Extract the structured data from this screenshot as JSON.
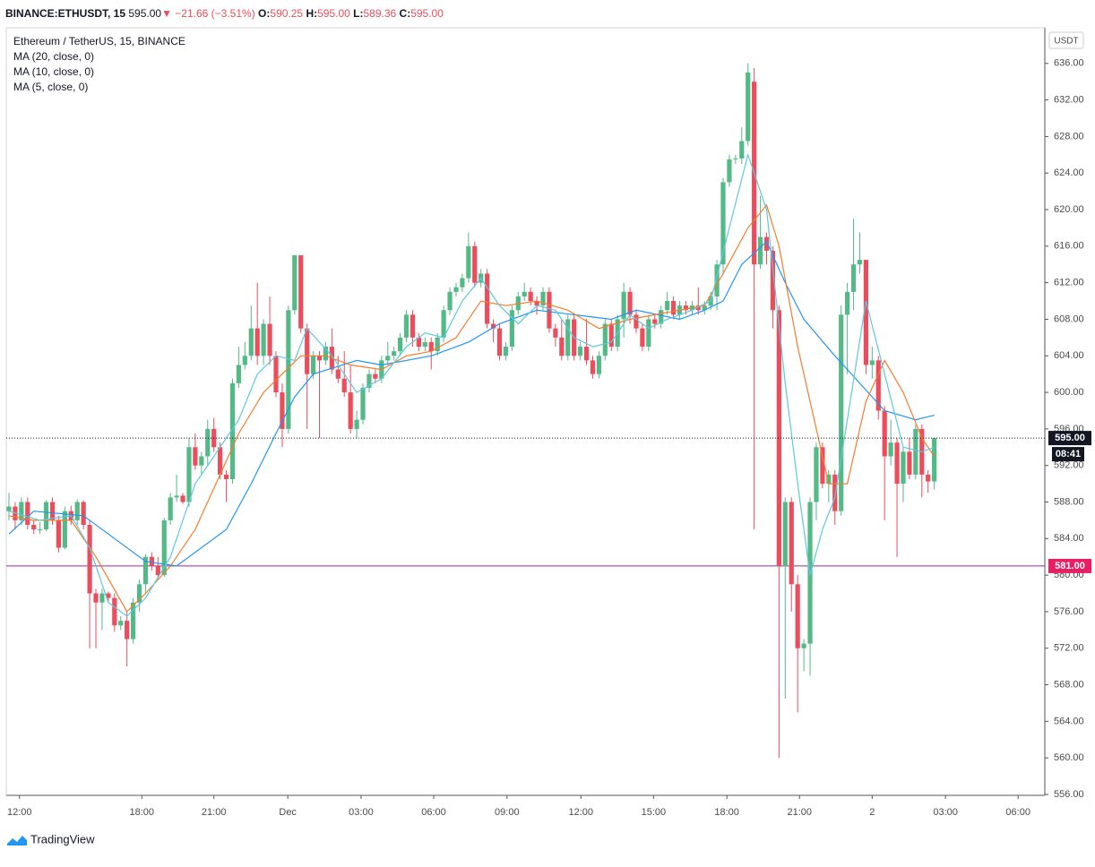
{
  "header": {
    "symbol": "BINANCE:ETHUSDT, 15",
    "price": "595.00",
    "arrow": "▼",
    "change": "−21.66 (−3.51%)",
    "o_label": "O:",
    "open": "590.25",
    "h_label": "H:",
    "high": "595.00",
    "l_label": "L:",
    "low": "589.36",
    "c_label": "C:",
    "close": "595.00"
  },
  "brand": "TradingView",
  "chart_data": {
    "type": "candlestick",
    "title": "Ethereum / TetherUS, 15, BINANCE",
    "currency": "USDT",
    "up_color": "#53b987",
    "down_color": "#eb4d5c",
    "candles": [
      [
        587,
        589,
        586,
        587.5
      ],
      [
        587.5,
        588,
        585,
        586
      ],
      [
        586,
        588.5,
        585.5,
        588
      ],
      [
        588,
        588.5,
        585,
        585.5
      ],
      [
        585.5,
        586,
        584.5,
        585
      ],
      [
        585,
        585.8,
        584.5,
        585
      ],
      [
        585,
        588.2,
        584.8,
        588
      ],
      [
        588,
        588.5,
        585.5,
        586
      ],
      [
        586,
        586.5,
        582.5,
        583
      ],
      [
        583,
        587.5,
        582.8,
        587
      ],
      [
        587,
        587.6,
        585.5,
        586
      ],
      [
        586,
        588.3,
        585.5,
        588
      ],
      [
        588,
        588.2,
        585,
        585.5
      ],
      [
        585.5,
        586,
        572,
        578
      ],
      [
        578,
        578.5,
        572,
        577
      ],
      [
        577,
        578.5,
        574,
        578
      ],
      [
        578,
        578.2,
        577,
        577.5
      ],
      [
        577.5,
        578,
        573.8,
        574.5
      ],
      [
        574.5,
        575.5,
        574,
        575
      ],
      [
        575,
        576,
        570,
        573
      ],
      [
        573,
        577.5,
        572.5,
        577
      ],
      [
        577,
        579.5,
        576,
        579
      ],
      [
        579,
        582.3,
        578,
        582
      ],
      [
        582,
        582.5,
        580.5,
        581
      ],
      [
        581,
        582,
        579.5,
        580
      ],
      [
        580,
        586.3,
        579.8,
        586
      ],
      [
        586,
        589,
        585.5,
        588.5
      ],
      [
        588.5,
        591,
        588,
        588.7
      ],
      [
        588.7,
        589,
        587.8,
        588
      ],
      [
        588,
        595,
        587.5,
        594
      ],
      [
        594,
        595.5,
        591.5,
        592
      ],
      [
        592,
        593.5,
        591,
        593
      ],
      [
        593,
        597,
        592,
        596
      ],
      [
        596,
        597.2,
        593.5,
        594
      ],
      [
        594,
        594.5,
        590.5,
        591
      ],
      [
        591,
        591.5,
        588,
        590.5
      ],
      [
        590.5,
        601.5,
        590,
        601
      ],
      [
        601,
        605,
        600.5,
        603
      ],
      [
        603,
        605.5,
        602.5,
        604
      ],
      [
        604,
        609.5,
        603.5,
        607
      ],
      [
        607,
        612,
        603,
        604
      ],
      [
        604,
        608,
        603,
        607.5
      ],
      [
        607.5,
        610.5,
        603,
        604
      ],
      [
        604,
        604.5,
        599.5,
        600
      ],
      [
        600,
        601,
        594,
        596
      ],
      [
        596,
        609.5,
        595.5,
        609
      ],
      [
        609,
        615,
        608.5,
        615
      ],
      [
        615,
        615,
        606.5,
        607
      ],
      [
        607,
        607.5,
        596,
        602
      ],
      [
        602,
        604.5,
        601.5,
        604
      ],
      [
        604,
        604.5,
        595,
        603.5
      ],
      [
        603.5,
        605.5,
        603,
        605
      ],
      [
        605,
        607,
        602,
        602.5
      ],
      [
        602.5,
        604,
        601,
        601.5
      ],
      [
        601.5,
        604.5,
        599.5,
        600
      ],
      [
        600,
        603,
        595.5,
        596
      ],
      [
        596,
        598,
        595,
        597
      ],
      [
        597,
        601,
        596.5,
        600.5
      ],
      [
        600.5,
        602.5,
        600,
        602
      ],
      [
        602,
        602.5,
        601,
        601.5
      ],
      [
        601.5,
        604,
        601,
        603.5
      ],
      [
        603.5,
        605.5,
        603,
        604
      ],
      [
        604,
        605,
        603.5,
        604.5
      ],
      [
        604.5,
        606.5,
        604,
        606
      ],
      [
        606,
        609,
        605.5,
        608.5
      ],
      [
        608.5,
        609,
        605,
        606
      ],
      [
        606,
        606.5,
        604.5,
        605
      ],
      [
        605,
        606,
        604.5,
        605.5
      ],
      [
        605.5,
        606,
        602.5,
        604.5
      ],
      [
        604.5,
        606.5,
        604,
        606
      ],
      [
        606,
        609.5,
        605.5,
        609
      ],
      [
        609,
        611.5,
        608.5,
        611
      ],
      [
        611,
        612,
        610.5,
        611.5
      ],
      [
        611.5,
        613,
        611,
        612.5
      ],
      [
        612.5,
        617.5,
        612,
        616
      ],
      [
        616,
        616.5,
        611.5,
        612
      ],
      [
        612,
        613.5,
        611.5,
        613
      ],
      [
        613,
        613.5,
        607,
        607.5
      ],
      [
        607.5,
        608,
        605.5,
        607
      ],
      [
        607,
        607.5,
        603.5,
        604
      ],
      [
        604,
        605.5,
        603.5,
        605
      ],
      [
        605,
        609.5,
        604.5,
        609
      ],
      [
        609,
        611,
        608.5,
        610.5
      ],
      [
        610.5,
        612,
        610,
        611
      ],
      [
        611,
        611.5,
        609.5,
        610
      ],
      [
        610,
        610.5,
        608.5,
        609.5
      ],
      [
        609.5,
        611.5,
        609,
        611
      ],
      [
        611,
        611.5,
        606.5,
        607
      ],
      [
        607,
        607.5,
        605,
        606
      ],
      [
        606,
        608,
        603.5,
        604
      ],
      [
        604,
        608.5,
        603.5,
        608
      ],
      [
        608,
        608.5,
        603.5,
        604
      ],
      [
        604,
        605.5,
        603.5,
        605
      ],
      [
        605,
        608,
        603,
        603.5
      ],
      [
        603.5,
        604,
        601.5,
        602
      ],
      [
        602,
        604.5,
        601.5,
        604
      ],
      [
        604,
        608,
        603.5,
        607.5
      ],
      [
        607.5,
        608,
        604.5,
        605
      ],
      [
        605,
        608.5,
        604.5,
        608
      ],
      [
        608,
        612,
        606,
        611
      ],
      [
        611,
        611.5,
        607.5,
        608.5
      ],
      [
        608.5,
        609,
        606.5,
        607
      ],
      [
        607,
        607.5,
        604.5,
        605
      ],
      [
        605,
        608.5,
        604.5,
        608
      ],
      [
        608,
        608.5,
        607,
        607.5
      ],
      [
        607.5,
        609.5,
        607,
        609
      ],
      [
        609,
        611,
        608.5,
        610
      ],
      [
        610,
        610.5,
        608,
        608.5
      ],
      [
        608.5,
        610,
        608,
        609.5
      ],
      [
        609.5,
        610,
        608.5,
        609
      ],
      [
        609,
        610,
        608.5,
        609.5
      ],
      [
        609.5,
        611.5,
        608.5,
        609
      ],
      [
        609,
        610,
        608.5,
        609.5
      ],
      [
        609.5,
        611,
        609,
        610.5
      ],
      [
        610.5,
        614.5,
        609,
        614
      ],
      [
        614,
        623.5,
        613,
        623
      ],
      [
        623,
        626,
        622.5,
        625.5
      ],
      [
        625.5,
        626,
        625,
        625.6
      ],
      [
        625.6,
        629,
        625,
        627.5
      ],
      [
        627.5,
        636,
        627,
        635
      ],
      [
        634,
        635.5,
        585,
        614
      ],
      [
        614,
        621.5,
        613.5,
        617
      ],
      [
        617,
        617.5,
        614,
        615.5
      ],
      [
        615.5,
        616,
        607,
        609
      ],
      [
        609,
        609.5,
        560,
        581
      ],
      [
        581,
        588.5,
        566.5,
        588
      ],
      [
        588,
        588.5,
        576,
        579
      ],
      [
        579,
        580,
        565,
        572
      ],
      [
        572,
        573,
        569.5,
        572.5
      ],
      [
        572.5,
        588.5,
        569,
        588
      ],
      [
        588,
        594.5,
        586,
        594
      ],
      [
        594,
        594.5,
        589.5,
        590
      ],
      [
        590,
        591.5,
        588,
        591
      ],
      [
        591,
        591.5,
        585.5,
        587
      ],
      [
        587,
        609.5,
        586.5,
        608.5
      ],
      [
        608.5,
        612,
        602,
        611
      ],
      [
        611,
        619,
        609,
        614
      ],
      [
        614,
        617.5,
        613,
        614.5
      ],
      [
        614.5,
        614.5,
        602,
        603
      ],
      [
        603,
        605,
        601.5,
        603.5
      ],
      [
        603.5,
        604,
        597,
        598
      ],
      [
        598,
        598.5,
        586,
        593
      ],
      [
        593,
        597,
        592,
        594.5
      ],
      [
        594.5,
        595,
        582,
        590
      ],
      [
        590,
        594,
        588,
        593.5
      ],
      [
        593.5,
        595,
        590.5,
        591
      ],
      [
        591,
        596.5,
        590.5,
        596
      ],
      [
        596,
        596.5,
        588.5,
        591
      ],
      [
        591,
        591.5,
        589,
        590.25
      ],
      [
        590.25,
        595,
        589.36,
        595
      ]
    ],
    "series": [
      {
        "name": "MA (20, close, 0)",
        "color": "#2196f3",
        "x": [
          0,
          4,
          12,
          17,
          22,
          27,
          35,
          39,
          43,
          46,
          49,
          56,
          60,
          68,
          74,
          79,
          85,
          91,
          97,
          101,
          108,
          112,
          115,
          118,
          122,
          125,
          128,
          133,
          137,
          141,
          146,
          149
        ],
        "values": [
          584.5,
          587,
          586.5,
          584,
          581.5,
          581,
          585,
          590,
          595.5,
          599.5,
          602,
          603.5,
          603,
          604,
          605.5,
          607.5,
          609,
          608.5,
          608,
          609,
          608,
          609,
          610,
          614,
          616.5,
          612,
          608,
          604,
          601,
          598,
          597,
          597.5
        ]
      },
      {
        "name": "MA (10, close, 0)",
        "color": "#f57c2c",
        "x": [
          0,
          4,
          10,
          14,
          19,
          22,
          26,
          30,
          34,
          37,
          41,
          44,
          47,
          51,
          55,
          60,
          64,
          68,
          72,
          76,
          80,
          85,
          90,
          95,
          100,
          104,
          108,
          112,
          115,
          119,
          122,
          124,
          127,
          130,
          132,
          135,
          138,
          141,
          144,
          147,
          149
        ],
        "values": [
          586.5,
          586,
          586,
          582,
          576,
          578,
          581,
          585,
          591,
          595.5,
          600,
          602,
          604,
          604,
          603,
          602.5,
          604,
          604.5,
          606,
          610,
          609.5,
          610,
          609,
          607,
          608,
          608.5,
          609,
          609.5,
          613,
          618,
          620.5,
          616,
          605,
          596,
          590,
          590,
          599,
          603.5,
          600,
          595,
          593
        ]
      },
      {
        "name": "MA (5, close, 0)",
        "color": "#5ec8e0",
        "x": [
          0,
          5,
          10,
          13,
          16,
          19,
          22,
          26,
          30,
          33,
          37,
          40,
          43,
          46,
          48,
          52,
          56,
          60,
          64,
          67,
          70,
          73,
          76,
          79,
          82,
          85,
          88,
          91,
          94,
          97,
          100,
          103,
          106,
          110,
          113,
          116,
          119,
          122,
          125,
          127,
          129,
          131,
          133,
          135,
          138,
          141,
          144,
          147,
          149
        ],
        "values": [
          587,
          586,
          586.5,
          583,
          577,
          575.5,
          577.5,
          582,
          590,
          593,
          597,
          602,
          604,
          603.5,
          607,
          604,
          600,
          601.5,
          605,
          606.5,
          606,
          610,
          612.5,
          609.5,
          607.5,
          609.5,
          609,
          606,
          605,
          605.5,
          608.5,
          607,
          608,
          609,
          610,
          618,
          626,
          620,
          601,
          590,
          580,
          585,
          588.5,
          597,
          610,
          602,
          594,
          593.5,
          594
        ]
      }
    ],
    "last_price": {
      "value": 595,
      "label": "595.00",
      "countdown": "08:41"
    },
    "horizontal_line": {
      "value": 581,
      "label": "581.00",
      "color": "#9c27b0",
      "label_color": "#e91e63"
    },
    "ylim": [
      555.9,
      639.9
    ],
    "yticks": [
      {
        "value": 556,
        "label": "556.00"
      },
      {
        "value": 560,
        "label": "560.00"
      },
      {
        "value": 564,
        "label": "564.00"
      },
      {
        "value": 568,
        "label": "568.00"
      },
      {
        "value": 572,
        "label": "572.00"
      },
      {
        "value": 576,
        "label": "576.00"
      },
      {
        "value": 580,
        "label": "580.00"
      },
      {
        "value": 584,
        "label": "584.00"
      },
      {
        "value": 588,
        "label": "588.00"
      },
      {
        "value": 592,
        "label": "592.00"
      },
      {
        "value": 596,
        "label": "596.00"
      },
      {
        "value": 600,
        "label": "600.00"
      },
      {
        "value": 604,
        "label": "604.00"
      },
      {
        "value": 608,
        "label": "608.00"
      },
      {
        "value": 612,
        "label": "612.00"
      },
      {
        "value": 616,
        "label": "616.00"
      },
      {
        "value": 620,
        "label": "620.00"
      },
      {
        "value": 624,
        "label": "624.00"
      },
      {
        "value": 628,
        "label": "628.00"
      },
      {
        "value": 632,
        "label": "632.00"
      },
      {
        "value": 636,
        "label": "636.00"
      }
    ],
    "xlim": [
      -0.43,
      166.8
    ],
    "xticks": [
      {
        "value": 1.7,
        "label": "12:00"
      },
      {
        "value": 21.4,
        "label": "18:00"
      },
      {
        "value": 33,
        "label": "21:00"
      },
      {
        "value": 44.9,
        "label": "Dec"
      },
      {
        "value": 56.7,
        "label": "03:00"
      },
      {
        "value": 68.4,
        "label": "06:00"
      },
      {
        "value": 80.2,
        "label": "09:00"
      },
      {
        "value": 92.1,
        "label": "12:00"
      },
      {
        "value": 103.8,
        "label": "15:00"
      },
      {
        "value": 115.6,
        "label": "18:00"
      },
      {
        "value": 127.3,
        "label": "21:00"
      },
      {
        "value": 139,
        "label": "2"
      },
      {
        "value": 150.8,
        "label": "03:00"
      },
      {
        "value": 162.5,
        "label": "06:00"
      }
    ]
  }
}
